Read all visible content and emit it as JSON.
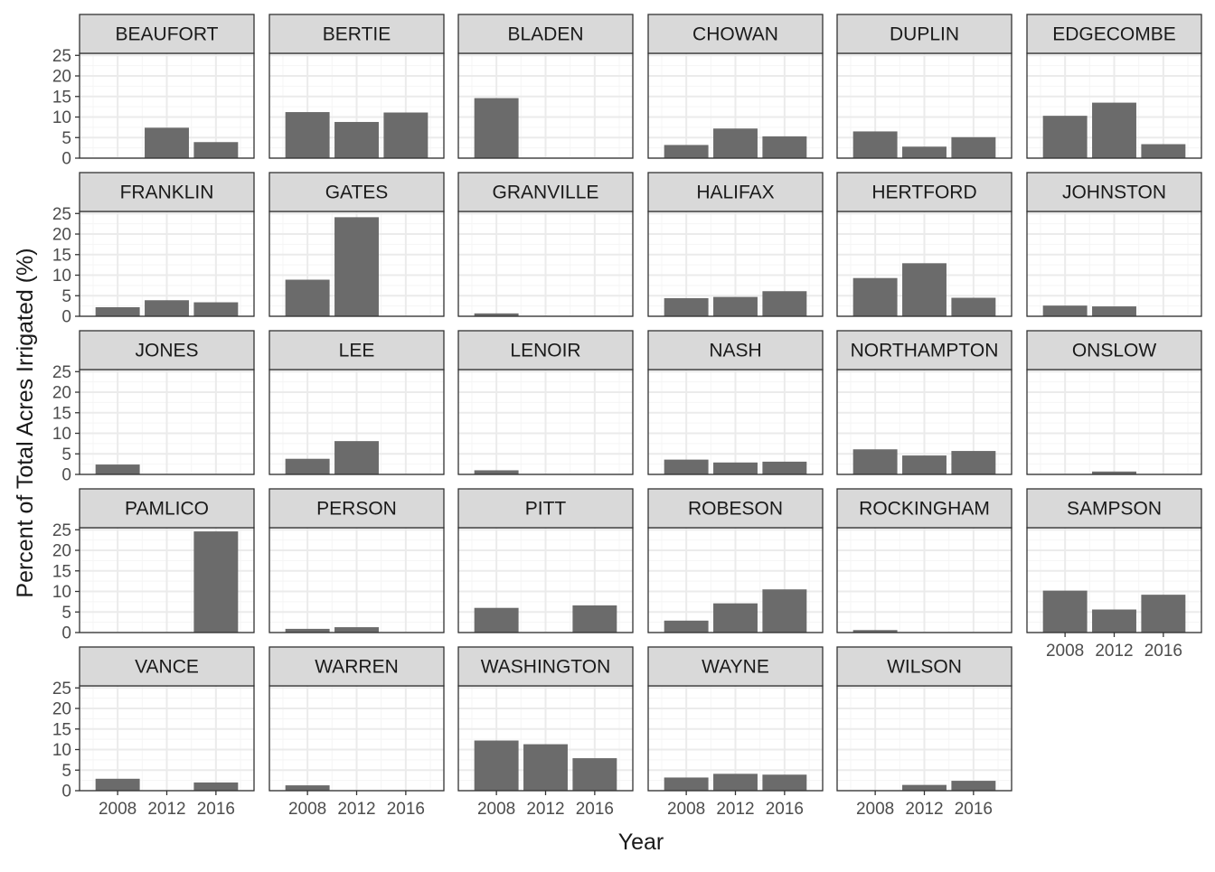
{
  "chart_data": {
    "type": "bar",
    "facet_layout": "wrap-6-columns",
    "xlabel": "Year",
    "ylabel": "Percent of Total Acres Irrigated (%)",
    "years": [
      2008,
      2012,
      2016
    ],
    "x_tick_labels": [
      "2008",
      "2012",
      "2016"
    ],
    "ylim": [
      0,
      25.5
    ],
    "y_ticks": [
      0,
      5,
      10,
      15,
      20,
      25
    ],
    "y_tick_labels": [
      "0",
      "5",
      "10",
      "15",
      "20",
      "25"
    ],
    "grid": true,
    "theme": "bw",
    "colors": {
      "bar": "#6b6b6b",
      "strip": "#d9d9d9",
      "strip_border": "#333333",
      "panel_border": "#333333",
      "grid_major": "#ebebeb",
      "grid_minor": "#f5f5f5",
      "tick_text": "#4d4d4d",
      "title_text": "#1a1a1a"
    },
    "panels": [
      {
        "name": "BEAUFORT",
        "values": [
          null,
          7.4,
          3.9
        ]
      },
      {
        "name": "BERTIE",
        "values": [
          11.2,
          8.8,
          11.1
        ]
      },
      {
        "name": "BLADEN",
        "values": [
          14.6,
          null,
          null
        ]
      },
      {
        "name": "CHOWAN",
        "values": [
          3.2,
          7.2,
          5.3
        ]
      },
      {
        "name": "DUPLIN",
        "values": [
          6.5,
          2.8,
          5.1
        ]
      },
      {
        "name": "EDGECOMBE",
        "values": [
          10.3,
          13.5,
          3.4
        ]
      },
      {
        "name": "FRANKLIN",
        "values": [
          2.2,
          3.9,
          3.4
        ]
      },
      {
        "name": "GATES",
        "values": [
          8.9,
          24.1,
          null
        ]
      },
      {
        "name": "GRANVILLE",
        "values": [
          0.7,
          null,
          null
        ]
      },
      {
        "name": "HALIFAX",
        "values": [
          4.4,
          4.7,
          6.1
        ]
      },
      {
        "name": "HERTFORD",
        "values": [
          9.3,
          12.9,
          4.5
        ]
      },
      {
        "name": "JOHNSTON",
        "values": [
          2.6,
          2.4,
          null
        ]
      },
      {
        "name": "JONES",
        "values": [
          2.4,
          null,
          null
        ]
      },
      {
        "name": "LEE",
        "values": [
          3.8,
          8.1,
          null
        ]
      },
      {
        "name": "LENOIR",
        "values": [
          1.0,
          null,
          null
        ]
      },
      {
        "name": "NASH",
        "values": [
          3.6,
          2.9,
          3.1
        ]
      },
      {
        "name": "NORTHAMPTON",
        "values": [
          6.1,
          4.6,
          5.7
        ]
      },
      {
        "name": "ONSLOW",
        "values": [
          null,
          0.7,
          null
        ]
      },
      {
        "name": "PAMLICO",
        "values": [
          null,
          null,
          24.6
        ]
      },
      {
        "name": "PERSON",
        "values": [
          0.9,
          1.3,
          null
        ]
      },
      {
        "name": "PITT",
        "values": [
          6.0,
          null,
          6.6
        ]
      },
      {
        "name": "ROBESON",
        "values": [
          2.9,
          7.1,
          10.5
        ]
      },
      {
        "name": "ROCKINGHAM",
        "values": [
          0.6,
          null,
          null
        ]
      },
      {
        "name": "SAMPSON",
        "values": [
          10.2,
          5.6,
          9.2
        ]
      },
      {
        "name": "VANCE",
        "values": [
          2.9,
          null,
          2.0
        ]
      },
      {
        "name": "WARREN",
        "values": [
          1.3,
          null,
          null
        ]
      },
      {
        "name": "WASHINGTON",
        "values": [
          12.2,
          11.3,
          7.9
        ]
      },
      {
        "name": "WAYNE",
        "values": [
          3.2,
          4.1,
          3.9
        ]
      },
      {
        "name": "WILSON",
        "values": [
          null,
          1.4,
          2.4
        ]
      }
    ]
  }
}
